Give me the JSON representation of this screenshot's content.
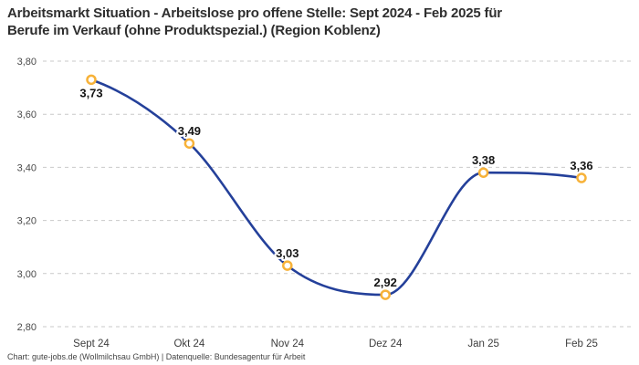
{
  "header": {
    "title_lines": [
      "Arbeitsmarkt Situation - Arbeitslose pro offene Stelle: Sept 2024 - Feb 2025 für",
      "Berufe im Verkauf (ohne Produktspezial.) (Region Koblenz)"
    ]
  },
  "footer": {
    "credit": "Chart: gute-jobs.de (Wollmilchsau GmbH) | Datenquelle: Bundesagentur für Arbeit"
  },
  "chart_data": {
    "type": "line",
    "title": "Arbeitsmarkt Situation - Arbeitslose pro offene Stelle: Sept 2024 - Feb 2025 für Berufe im Verkauf (ohne Produktspezial.) (Region Koblenz)",
    "categories": [
      "Sept 24",
      "Okt 24",
      "Nov 24",
      "Dez 24",
      "Jan 25",
      "Feb 25"
    ],
    "values": [
      3.73,
      3.49,
      3.03,
      2.92,
      3.38,
      3.36
    ],
    "value_labels": [
      "3,73",
      "3,49",
      "3,03",
      "2,92",
      "3,38",
      "3,36"
    ],
    "label_position": [
      "below",
      "above",
      "above",
      "above",
      "above",
      "above"
    ],
    "xlabel": "",
    "ylabel": "",
    "ylim": [
      2.8,
      3.8
    ],
    "ytick_labels": [
      "3,80",
      "3,60",
      "3,40",
      "3,20",
      "3,00",
      "2,80"
    ],
    "ytick_values": [
      3.8,
      3.6,
      3.4,
      3.2,
      3.0,
      2.8
    ],
    "grid": "horizontal-dashed",
    "legend": "none",
    "colors": {
      "line": "#24409a",
      "marker_stroke": "#f7b239",
      "marker_fill": "#ffffff",
      "gridline": "#c9c9c9",
      "title_text": "#2e2e2e",
      "tick_text": "#4a4a4a",
      "value_label_text": "#161616"
    }
  }
}
